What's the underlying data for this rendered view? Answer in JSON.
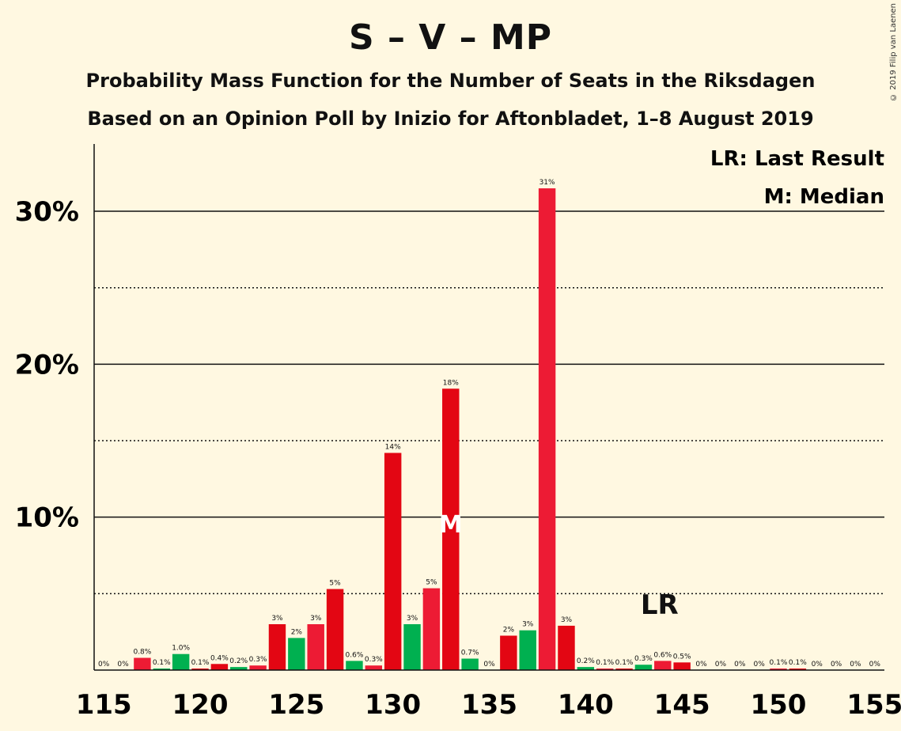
{
  "title": "S – V – MP",
  "subtitle": "Probability Mass Function for the Number of Seats in the Riksdagen",
  "subtitle2": "Based on an Opinion Poll by Inizio for Aftonbladet, 1–8 August 2019",
  "copyright": "© 2019 Filip van Laenen",
  "legend": {
    "last_result": "LR: Last Result",
    "median": "M: Median"
  },
  "colors": {
    "background": "#FFF8E1",
    "red": "#E30613",
    "red_alt": "#ED1B34",
    "green": "#00B050"
  },
  "chart_data": {
    "type": "bar",
    "x": [
      115,
      116,
      117,
      118,
      119,
      120,
      121,
      122,
      123,
      124,
      125,
      126,
      127,
      128,
      129,
      130,
      131,
      132,
      133,
      134,
      135,
      136,
      137,
      138,
      139,
      140,
      141,
      142,
      143,
      144,
      145,
      146,
      147,
      148,
      149,
      150,
      151,
      152,
      153,
      154,
      155
    ],
    "values": [
      0,
      0,
      0.8,
      0.1,
      1.0,
      0.1,
      0.4,
      0.2,
      0.3,
      3,
      2,
      3,
      5,
      0.6,
      0.3,
      14,
      3,
      5,
      18,
      0.7,
      0,
      2,
      3,
      31,
      3,
      0.2,
      0.1,
      0.1,
      0.3,
      0.6,
      0.5,
      0,
      0,
      0,
      0,
      0.1,
      0.1,
      0,
      0,
      0,
      0
    ],
    "plot_values": [
      0,
      0,
      0.8,
      0.1,
      1.05,
      0.1,
      0.4,
      0.2,
      0.3,
      3.0,
      2.1,
      3.0,
      5.3,
      0.6,
      0.3,
      14.2,
      3.0,
      5.35,
      18.4,
      0.75,
      0,
      2.25,
      2.6,
      31.5,
      2.9,
      0.2,
      0.1,
      0.1,
      0.35,
      0.6,
      0.5,
      0,
      0,
      0,
      0,
      0.1,
      0.1,
      0,
      0,
      0,
      0
    ],
    "labels": [
      "0%",
      "0%",
      "0.8%",
      "0.1%",
      "1.0%",
      "0.1%",
      "0.4%",
      "0.2%",
      "0.3%",
      "3%",
      "2%",
      "3%",
      "5%",
      "0.6%",
      "0.3%",
      "14%",
      "3%",
      "5%",
      "18%",
      "0.7%",
      "0%",
      "2%",
      "3%",
      "31%",
      "3%",
      "0.2%",
      "0.1%",
      "0.1%",
      "0.3%",
      "0.6%",
      "0.5%",
      "0%",
      "0%",
      "0%",
      "0%",
      "0.1%",
      "0.1%",
      "0%",
      "0%",
      "0%",
      "0%"
    ],
    "bar_colors": [
      "red",
      "red",
      "red_alt",
      "green",
      "green",
      "red",
      "red",
      "green",
      "red_alt",
      "red",
      "green",
      "red_alt",
      "red",
      "green",
      "red_alt",
      "red",
      "green",
      "red_alt",
      "red",
      "green",
      "red_alt",
      "red",
      "green",
      "red_alt",
      "red",
      "green",
      "red_alt",
      "red",
      "green",
      "red_alt",
      "red",
      "green",
      "red_alt",
      "red",
      "green",
      "red_alt",
      "red",
      "green",
      "red_alt",
      "red",
      "green"
    ],
    "xticks": [
      115,
      120,
      125,
      130,
      135,
      140,
      145,
      150,
      155
    ],
    "xtick_labels": [
      "115",
      "120",
      "125",
      "130",
      "135",
      "140",
      "145",
      "150",
      "155"
    ],
    "yticks_major": [
      10,
      20,
      30
    ],
    "ytick_labels": [
      "10%",
      "20%",
      "30%"
    ],
    "yticks_minor": [
      5,
      15,
      25
    ],
    "ylim": [
      0,
      34.4
    ],
    "xlim": [
      114.5,
      155.5
    ],
    "median_seat": 133,
    "median_marker": "M",
    "last_result_seat": 144,
    "last_result_marker": "LR",
    "legend_position": "top-right",
    "grid": true
  }
}
